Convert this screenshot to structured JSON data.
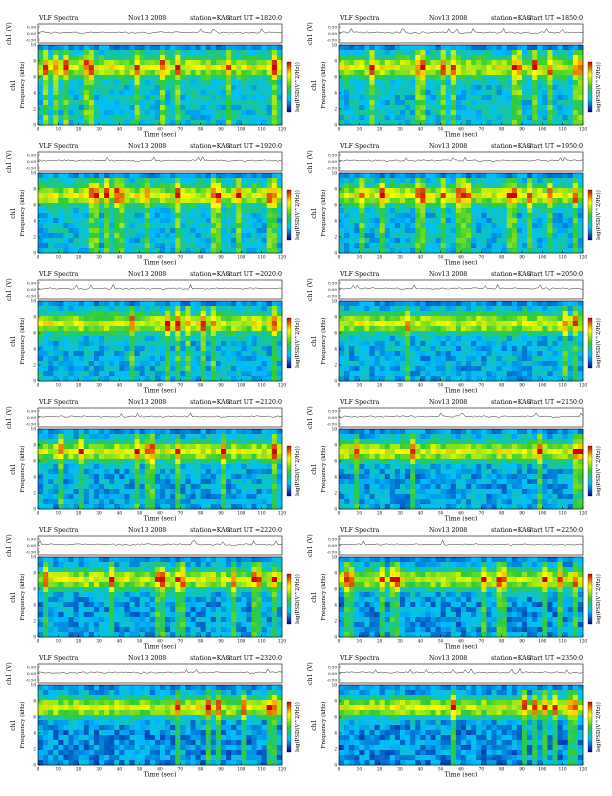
{
  "figure": {
    "panel_title": "VLF Spectra",
    "date": "Nov13 2008",
    "station": "station=KAG",
    "start_prefix": "start UT =",
    "x_label": "Time (sec)",
    "y_label_top": "ch1",
    "y_label_bottom": "Frequency (kHz)",
    "wave_label": "ch1 (V)",
    "colorbar_label": "log(PSD(V^2/Hz))",
    "colors": {
      "low": "#00008b",
      "mid_low": "#00bfff",
      "mid": "#33cc33",
      "mid_high": "#ffff00",
      "high": "#cc0000"
    }
  },
  "chart_data": [
    {
      "type": "heatmap",
      "start_ut": "1820:0",
      "x_range": [
        0,
        120
      ],
      "y_range": [
        0,
        10
      ],
      "x_ticks": [
        0,
        10,
        20,
        30,
        40,
        50,
        60,
        70,
        80,
        90,
        100,
        110,
        120
      ],
      "y_ticks": [
        0,
        2,
        4,
        6,
        8,
        10
      ],
      "wave_ticks": [
        "0.50",
        "0.00",
        "-0.50"
      ]
    },
    {
      "type": "heatmap",
      "start_ut": "1850:0",
      "x_range": [
        0,
        120
      ],
      "y_range": [
        0,
        10
      ],
      "x_ticks": [
        0,
        10,
        20,
        30,
        40,
        50,
        60,
        70,
        80,
        90,
        100,
        110,
        120
      ],
      "y_ticks": [
        0,
        2,
        4,
        6,
        8,
        10
      ],
      "wave_ticks": [
        "0.50",
        "0.00",
        "-0.50"
      ]
    },
    {
      "type": "heatmap",
      "start_ut": "1920:0",
      "x_range": [
        0,
        120
      ],
      "y_range": [
        0,
        10
      ],
      "x_ticks": [
        0,
        10,
        20,
        30,
        40,
        50,
        60,
        70,
        80,
        90,
        100,
        110,
        120
      ],
      "y_ticks": [
        0,
        2,
        4,
        6,
        8,
        10
      ],
      "wave_ticks": [
        "0.50",
        "0.00",
        "-0.50"
      ]
    },
    {
      "type": "heatmap",
      "start_ut": "1950:0",
      "x_range": [
        0,
        120
      ],
      "y_range": [
        0,
        10
      ],
      "x_ticks": [
        0,
        10,
        20,
        30,
        40,
        50,
        60,
        70,
        80,
        90,
        100,
        110,
        120
      ],
      "y_ticks": [
        0,
        2,
        4,
        6,
        8,
        10
      ],
      "wave_ticks": [
        "0.50",
        "0.00",
        "-0.50"
      ]
    },
    {
      "type": "heatmap",
      "start_ut": "2020:0",
      "x_range": [
        0,
        120
      ],
      "y_range": [
        0,
        10
      ],
      "x_ticks": [
        0,
        10,
        20,
        30,
        40,
        50,
        60,
        70,
        80,
        90,
        100,
        110,
        120
      ],
      "y_ticks": [
        0,
        2,
        4,
        6,
        8,
        10
      ],
      "wave_ticks": [
        "0.50",
        "0.00",
        "-0.50"
      ]
    },
    {
      "type": "heatmap",
      "start_ut": "2050:0",
      "x_range": [
        0,
        120
      ],
      "y_range": [
        0,
        10
      ],
      "x_ticks": [
        0,
        10,
        20,
        30,
        40,
        50,
        60,
        70,
        80,
        90,
        100,
        110,
        120
      ],
      "y_ticks": [
        0,
        2,
        4,
        6,
        8,
        10
      ],
      "wave_ticks": [
        "0.50",
        "0.00",
        "-0.50"
      ]
    },
    {
      "type": "heatmap",
      "start_ut": "2120:0",
      "x_range": [
        0,
        120
      ],
      "y_range": [
        0,
        10
      ],
      "x_ticks": [
        0,
        10,
        20,
        30,
        40,
        50,
        60,
        70,
        80,
        90,
        100,
        110,
        120
      ],
      "y_ticks": [
        0,
        2,
        4,
        6,
        8,
        10
      ],
      "wave_ticks": [
        "0.50",
        "0.00",
        "-0.50"
      ]
    },
    {
      "type": "heatmap",
      "start_ut": "2150:0",
      "x_range": [
        0,
        120
      ],
      "y_range": [
        0,
        10
      ],
      "x_ticks": [
        0,
        10,
        20,
        30,
        40,
        50,
        60,
        70,
        80,
        90,
        100,
        110,
        120
      ],
      "y_ticks": [
        0,
        2,
        4,
        6,
        8,
        10
      ],
      "wave_ticks": [
        "0.50",
        "0.00",
        "-0.50"
      ]
    },
    {
      "type": "heatmap",
      "start_ut": "2220:0",
      "x_range": [
        0,
        120
      ],
      "y_range": [
        0,
        10
      ],
      "x_ticks": [
        0,
        10,
        20,
        30,
        40,
        50,
        60,
        70,
        80,
        90,
        100,
        110,
        120
      ],
      "y_ticks": [
        0,
        2,
        4,
        6,
        8,
        10
      ],
      "wave_ticks": [
        "0.50",
        "0.00",
        "-0.50"
      ]
    },
    {
      "type": "heatmap",
      "start_ut": "2250:0",
      "x_range": [
        0,
        120
      ],
      "y_range": [
        0,
        10
      ],
      "x_ticks": [
        0,
        10,
        20,
        30,
        40,
        50,
        60,
        70,
        80,
        90,
        100,
        110,
        120
      ],
      "y_ticks": [
        0,
        2,
        4,
        6,
        8,
        10
      ],
      "wave_ticks": [
        "0.50",
        "0.00",
        "-0.50"
      ]
    },
    {
      "type": "heatmap",
      "start_ut": "2320:0",
      "x_range": [
        0,
        120
      ],
      "y_range": [
        0,
        10
      ],
      "x_ticks": [
        0,
        10,
        20,
        30,
        40,
        50,
        60,
        70,
        80,
        90,
        100,
        110,
        120
      ],
      "y_ticks": [
        0,
        2,
        4,
        6,
        8,
        10
      ],
      "wave_ticks": [
        "0.50",
        "0.00",
        "-0.50"
      ]
    },
    {
      "type": "heatmap",
      "start_ut": "2350:0",
      "x_range": [
        0,
        120
      ],
      "y_range": [
        0,
        10
      ],
      "x_ticks": [
        0,
        10,
        20,
        30,
        40,
        50,
        60,
        70,
        80,
        90,
        100,
        110,
        120
      ],
      "y_ticks": [
        0,
        2,
        4,
        6,
        8,
        10
      ],
      "wave_ticks": [
        "0.50",
        "0.00",
        "-0.50"
      ]
    }
  ]
}
